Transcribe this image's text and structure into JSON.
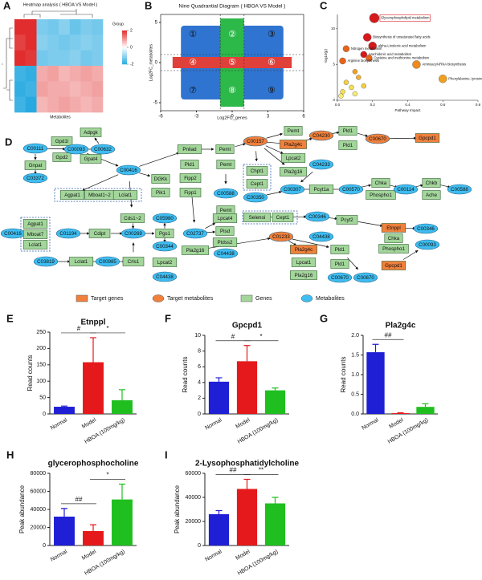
{
  "chart_data": [
    {
      "type": "heatmap",
      "panel": "A",
      "title": "Heatmap analysis ( HBOA VS Model )",
      "xlabel": "Metabolites",
      "legend_title": "Group",
      "zlim": [
        -2,
        2
      ],
      "zticks": [
        2,
        0,
        -2
      ],
      "values": [
        [
          2,
          2,
          -1.2,
          -1.3,
          -1.1,
          -1.4,
          -1.2,
          -1.3
        ],
        [
          1.8,
          2,
          -1.1,
          -1.2,
          -1.3,
          -1.2,
          -1.1,
          -1.2
        ],
        [
          2,
          1.9,
          -1.3,
          -1.2,
          -1.2,
          -1.1,
          -1.3,
          -1.2
        ],
        [
          -1.8,
          -1.9,
          0.8,
          0.9,
          0.7,
          0.8,
          0.9,
          0.8
        ],
        [
          -1.9,
          -1.8,
          0.9,
          0.8,
          0.8,
          0.7,
          0.8,
          0.9
        ],
        [
          -1.8,
          -2,
          0.7,
          0.8,
          0.9,
          0.8,
          0.7,
          0.8
        ]
      ]
    },
    {
      "type": "quadrant",
      "panel": "B",
      "title": "Nine Quadrantial Diagram ( HBOA VS Model )",
      "xlabel": "Log2FC_genes",
      "ylabel": "Log2FC_metabolites",
      "xlim": [
        -6,
        6
      ],
      "xticks": [
        -6,
        -3,
        0,
        3,
        6
      ],
      "ylim": [
        -6,
        6
      ],
      "yticks": [
        -5,
        0,
        5
      ],
      "x_cutoffs": [
        -1,
        1
      ],
      "y_cutoffs": [
        -1,
        1
      ],
      "quadrant_labels": [
        "①",
        "②",
        "③",
        "④",
        "⑤",
        "⑥",
        "⑦",
        "⑧",
        "⑨"
      ],
      "colors": [
        "#2f74d0",
        "#2db84a",
        "#e0403a"
      ]
    },
    {
      "type": "bubble",
      "panel": "C",
      "xlabel": "Pathway Impact",
      "ylabel": "-log10(p)",
      "xlim": [
        0,
        0.8
      ],
      "xticks": [
        {
          "value": 0,
          "label": "0.0"
        },
        0.2,
        0.4,
        0.6,
        0.8
      ],
      "ylim": [
        0,
        12
      ],
      "yticks": [
        0,
        5,
        10
      ],
      "x": [
        0.21,
        0.17,
        0.2,
        0.05,
        0.15,
        0.18,
        0.03,
        0.45,
        0.6,
        0.1,
        0.12,
        0.05,
        0.08,
        0.03,
        0.15,
        0.02,
        0.1
      ],
      "y": [
        11.5,
        8.8,
        7.6,
        7.2,
        6.4,
        5.9,
        5.5,
        5,
        3,
        4,
        3.2,
        2.5,
        1.8,
        1.2,
        2,
        0.6,
        0.9
      ],
      "sizes": [
        6,
        5,
        5,
        4,
        4,
        4,
        4,
        5,
        5,
        3,
        3,
        3,
        3,
        3,
        3,
        3,
        3
      ],
      "colors": [
        "#d7191c",
        "#d7191c",
        "#d7191c",
        "#e8641a",
        "#d7191c",
        "#e8641a",
        "#e8641a",
        "#f08a1c",
        "#f0a020",
        "#f0a020",
        "#f0b030",
        "#f5d040",
        "#f5e050",
        "#f5e050",
        "#f5d040",
        "#f8ec70",
        "#f8ec70"
      ],
      "labels": [
        "Glycerophospholipid metabolism",
        "Biosynthesis of unsaturated fatty acids",
        "alpha-Linolenic acid metabolism",
        "Nitrogen metabolism",
        "Arachidonic acid metabolism",
        "Cysteine and methionine metabolism",
        "Arginine biosynthesis",
        "Aminoacyl-tRNA biosynthesis",
        "Phenylalanine, tyrosine and tryptophan biosynthesis",
        null,
        null,
        null,
        null,
        null,
        null,
        null,
        null
      ]
    },
    {
      "type": "bar",
      "panel": "E",
      "title": "Etnppl",
      "ylabel": "Read counts",
      "categories": [
        "Normal",
        "Model",
        "HBOA (100mg/kg)"
      ],
      "values": [
        22,
        158,
        42
      ],
      "errors": [
        2,
        75,
        32
      ],
      "colors": [
        "#1f1fd6",
        "#e5191c",
        "#1fbf1f"
      ],
      "ylim": [
        0,
        250
      ],
      "yticks": [
        0,
        50,
        100,
        150,
        200,
        250
      ],
      "annotations": [
        "#",
        "*"
      ]
    },
    {
      "type": "bar",
      "panel": "F",
      "title": "Gpcpd1",
      "ylabel": "Read counts",
      "categories": [
        "Normal",
        "Model",
        "HBOA (100mg/kg)"
      ],
      "values": [
        4.1,
        6.7,
        3.0
      ],
      "errors": [
        0.5,
        2.0,
        0.3
      ],
      "colors": [
        "#1f1fd6",
        "#e5191c",
        "#1fbf1f"
      ],
      "ylim": [
        0,
        10
      ],
      "yticks": [
        0,
        2,
        4,
        6,
        8,
        10
      ],
      "annotations": [
        "#",
        "*"
      ]
    },
    {
      "type": "bar",
      "panel": "G",
      "title": "Pla2g4c",
      "ylabel": "Read counts",
      "categories": [
        "Normal",
        "Model",
        "HBOA (100mg/kg)"
      ],
      "values": [
        1.57,
        0.02,
        0.18
      ],
      "errors": [
        0.2,
        0.01,
        0.08
      ],
      "colors": [
        "#1f1fd6",
        "#e5191c",
        "#1fbf1f"
      ],
      "ylim": [
        0,
        2
      ],
      "yticks": [
        {
          "value": 0,
          "label": "0.0"
        },
        0.5,
        {
          "value": 1,
          "label": "1.0"
        },
        1.5,
        {
          "value": 2,
          "label": "2.0"
        }
      ],
      "annotations": [
        "##"
      ]
    },
    {
      "type": "bar",
      "panel": "H",
      "title": "glycerophosphocholine",
      "ylabel": "Peak abundance",
      "categories": [
        "Normal",
        "Model",
        "HBOA (100mg/kg)"
      ],
      "values": [
        32000,
        16000,
        51000
      ],
      "errors": [
        9000,
        7000,
        17000
      ],
      "colors": [
        "#1f1fd6",
        "#e5191c",
        "#1fbf1f"
      ],
      "ylim": [
        0,
        80000
      ],
      "yticks": [
        0,
        20000,
        40000,
        60000,
        80000
      ],
      "annotations": [
        "##",
        "*"
      ]
    },
    {
      "type": "bar",
      "panel": "I",
      "title": "2-Lysophosphatidylcholine",
      "ylabel": "Peak abundance",
      "categories": [
        "Normal",
        "Model",
        "HBOA (100mg/kg)"
      ],
      "values": [
        26000,
        47000,
        35000
      ],
      "errors": [
        3000,
        8000,
        5000
      ],
      "colors": [
        "#1f1fd6",
        "#e5191c",
        "#1fbf1f"
      ],
      "ylim": [
        0,
        60000
      ],
      "yticks": [
        0,
        20000,
        40000,
        60000
      ],
      "annotations": [
        "##",
        "**"
      ]
    }
  ],
  "diagram": {
    "panel": "D",
    "legend": [
      {
        "label": "Target genes",
        "shape": "rect",
        "color": "#f0803c"
      },
      {
        "label": "Target metabolites",
        "shape": "ellipse",
        "color": "#f0803c"
      },
      {
        "label": "Genes",
        "shape": "rect",
        "color": "#a3d69b"
      },
      {
        "label": "Metabolites",
        "shape": "ellipse",
        "color": "#3fbdf0"
      }
    ],
    "nodes": [
      {
        "label": "Adpgk",
        "shape": "rect",
        "color": "#a3d69b"
      },
      {
        "label": "C00111",
        "shape": "ellipse",
        "color": "#3fbdf0"
      },
      {
        "label": "Gpd1l",
        "shape": "rect",
        "color": "#a3d69b"
      },
      {
        "label": "Gpd2",
        "shape": "rect",
        "color": "#a3d69b"
      },
      {
        "label": "C00093",
        "shape": "ellipse",
        "color": "#3fbdf0"
      },
      {
        "label": "C00632",
        "shape": "ellipse",
        "color": "#3fbdf0"
      },
      {
        "label": "Gpat4",
        "shape": "rect",
        "color": "#a3d69b"
      },
      {
        "label": "Gnpat",
        "shape": "rect",
        "color": "#a3d69b"
      },
      {
        "label": "C03372",
        "shape": "ellipse",
        "color": "#3fbdf0"
      },
      {
        "label": "Pnliad",
        "shape": "rect",
        "color": "#a3d69b"
      },
      {
        "label": "Pld1",
        "shape": "rect",
        "color": "#a3d69b"
      },
      {
        "label": "Pemt",
        "shape": "rect",
        "color": "#a3d69b"
      },
      {
        "label": "C00157",
        "shape": "ellipse",
        "color": "#f0803c"
      },
      {
        "label": "C00416",
        "shape": "ellipse",
        "color": "#3fbdf0"
      },
      {
        "label": "DGKk",
        "shape": "rect",
        "color": "#a3d69b"
      },
      {
        "label": "Pik1",
        "shape": "rect",
        "color": "#a3d69b"
      },
      {
        "label": "Fipp2",
        "shape": "rect",
        "color": "#a3d69b"
      },
      {
        "label": "Fipp1",
        "shape": "rect",
        "color": "#a3d69b"
      },
      {
        "label": "Pemt",
        "shape": "rect",
        "color": "#a3d69b"
      },
      {
        "label": "C00588",
        "shape": "ellipse",
        "color": "#3fbdf0"
      },
      {
        "label": "Chpt1",
        "shape": "rect",
        "color": "#a3d69b"
      },
      {
        "label": "Cept1",
        "shape": "rect",
        "color": "#a3d69b"
      },
      {
        "label": "C00350",
        "shape": "ellipse",
        "color": "#3fbdf0"
      },
      {
        "label": "Pemt",
        "shape": "rect",
        "color": "#a3d69b"
      },
      {
        "label": "Pemt",
        "shape": "rect",
        "color": "#a3d69b"
      },
      {
        "label": "Pla2g4c",
        "shape": "rect",
        "color": "#f0803c"
      },
      {
        "label": "Lpcat2",
        "shape": "rect",
        "color": "#a3d69b"
      },
      {
        "label": "Pla2g16",
        "shape": "rect",
        "color": "#a3d69b"
      },
      {
        "label": "C04230",
        "shape": "ellipse",
        "color": "#f0803c"
      },
      {
        "label": "C04233",
        "shape": "ellipse",
        "color": "#3fbdf0"
      },
      {
        "label": "Pld1",
        "shape": "rect",
        "color": "#a3d69b"
      },
      {
        "label": "Pld1",
        "shape": "rect",
        "color": "#a3d69b"
      },
      {
        "label": "C00670",
        "shape": "ellipse",
        "color": "#f0803c"
      },
      {
        "label": "Gpcpd1",
        "shape": "rect",
        "color": "#f0803c"
      },
      {
        "label": "C00307",
        "shape": "ellipse",
        "color": "#3fbdf0"
      },
      {
        "label": "Pcyt1a",
        "shape": "rect",
        "color": "#a3d69b"
      },
      {
        "label": "C00570",
        "shape": "ellipse",
        "color": "#3fbdf0"
      },
      {
        "label": "Chka",
        "shape": "rect",
        "color": "#a3d69b"
      },
      {
        "label": "Phospho1",
        "shape": "rect",
        "color": "#a3d69b"
      },
      {
        "label": "C00114",
        "shape": "ellipse",
        "color": "#3fbdf0"
      },
      {
        "label": "Chkb",
        "shape": "rect",
        "color": "#a3d69b"
      },
      {
        "label": "Ache",
        "shape": "rect",
        "color": "#a3d69b"
      },
      {
        "label": "C00588",
        "shape": "ellipse",
        "color": "#3fbdf0"
      },
      {
        "label": "Agpat1",
        "shape": "rect",
        "color": "#a3d69b"
      },
      {
        "label": "Mboat1~2",
        "shape": "rect",
        "color": "#a3d69b"
      },
      {
        "label": "Lclat1",
        "shape": "rect",
        "color": "#a3d69b"
      },
      {
        "label": "Cds1~2",
        "shape": "rect",
        "color": "#a3d69b"
      },
      {
        "label": "C00269",
        "shape": "ellipse",
        "color": "#3fbdf0"
      },
      {
        "label": "C00416",
        "shape": "ellipse",
        "color": "#3fbdf0"
      },
      {
        "label": "Agpat1",
        "shape": "rect",
        "color": "#a3d69b"
      },
      {
        "label": "Mboat7",
        "shape": "rect",
        "color": "#a3d69b"
      },
      {
        "label": "Lclat1",
        "shape": "rect",
        "color": "#a3d69b"
      },
      {
        "label": "C01194",
        "shape": "ellipse",
        "color": "#3fbdf0"
      },
      {
        "label": "Cdipt",
        "shape": "rect",
        "color": "#a3d69b"
      },
      {
        "label": "Pgs1",
        "shape": "rect",
        "color": "#a3d69b"
      },
      {
        "label": "C05980",
        "shape": "ellipse",
        "color": "#3fbdf0"
      },
      {
        "label": "C00344",
        "shape": "ellipse",
        "color": "#3fbdf0"
      },
      {
        "label": "C03819",
        "shape": "ellipse",
        "color": "#3fbdf0"
      },
      {
        "label": "Lclat1",
        "shape": "rect",
        "color": "#a3d69b"
      },
      {
        "label": "C00985",
        "shape": "ellipse",
        "color": "#3fbdf0"
      },
      {
        "label": "Crls1",
        "shape": "rect",
        "color": "#a3d69b"
      },
      {
        "label": "Lpcat2",
        "shape": "rect",
        "color": "#a3d69b"
      },
      {
        "label": "C04438",
        "shape": "ellipse",
        "color": "#3fbdf0"
      },
      {
        "label": "C02737",
        "shape": "ellipse",
        "color": "#3fbdf0"
      },
      {
        "label": "Lpcat4",
        "shape": "rect",
        "color": "#a3d69b"
      },
      {
        "label": "Pisd",
        "shape": "rect",
        "color": "#a3d69b"
      },
      {
        "label": "Ptdss2",
        "shape": "rect",
        "color": "#a3d69b"
      },
      {
        "label": "Pla2g16",
        "shape": "rect",
        "color": "#a3d69b"
      },
      {
        "label": "C04438",
        "shape": "ellipse",
        "color": "#3fbdf0"
      },
      {
        "label": "Selenoi",
        "shape": "rect",
        "color": "#a3d69b"
      },
      {
        "label": "Cept1",
        "shape": "rect",
        "color": "#a3d69b"
      },
      {
        "label": "C00346",
        "shape": "ellipse",
        "color": "#3fbdf0"
      },
      {
        "label": "Pcyt2",
        "shape": "rect",
        "color": "#a3d69b"
      },
      {
        "label": "C01233",
        "shape": "ellipse",
        "color": "#f0803c"
      },
      {
        "label": "C04438",
        "shape": "ellipse",
        "color": "#3fbdf0"
      },
      {
        "label": "Pla2g4c",
        "shape": "rect",
        "color": "#f0803c"
      },
      {
        "label": "Lpcat1",
        "shape": "rect",
        "color": "#a3d69b"
      },
      {
        "label": "Pla2g16",
        "shape": "rect",
        "color": "#a3d69b"
      },
      {
        "label": "Pld1",
        "shape": "rect",
        "color": "#a3d69b"
      },
      {
        "label": "Pld1",
        "shape": "rect",
        "color": "#a3d69b"
      },
      {
        "label": "C00670",
        "shape": "ellipse",
        "color": "#3fbdf0"
      },
      {
        "label": "Etnppl",
        "shape": "rect",
        "color": "#f0803c"
      },
      {
        "label": "Chka",
        "shape": "rect",
        "color": "#a3d69b"
      },
      {
        "label": "Phospho1",
        "shape": "rect",
        "color": "#a3d69b"
      },
      {
        "label": "C00346",
        "shape": "ellipse",
        "color": "#3fbdf0"
      },
      {
        "label": "C00093",
        "shape": "ellipse",
        "color": "#3fbdf0"
      },
      {
        "label": "Gpcpd1",
        "shape": "rect",
        "color": "#f0803c"
      },
      {
        "label": "C00670",
        "shape": "ellipse",
        "color": "#3fbdf0"
      }
    ]
  }
}
